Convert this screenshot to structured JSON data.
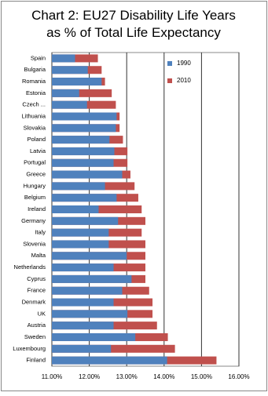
{
  "chart_data": {
    "type": "bar",
    "orientation": "horizontal",
    "overlap": true,
    "title": "Chart 2: EU27 Disability Life Years as % of Total Life Expectancy",
    "categories": [
      "Spain",
      "Bulgaria",
      "Romania",
      "Estonia",
      "Czech ...",
      "Lithuania",
      "Slovakia",
      "Poland",
      "Latvia",
      "Portugal",
      "Greece",
      "Hungary",
      "Belgium",
      "Ireland",
      "Germany",
      "Italy",
      "Slovenia",
      "Malta",
      "Netherlands",
      "Cyprus",
      "France",
      "Denmark",
      "UK",
      "Austria",
      "Sweden",
      "Luxembourg",
      "Finland"
    ],
    "series": [
      {
        "name": "1990",
        "color": "#4f81bd",
        "values": [
          11.62,
          11.96,
          12.33,
          11.73,
          11.94,
          12.73,
          12.71,
          12.54,
          12.67,
          12.65,
          12.88,
          12.42,
          12.73,
          12.25,
          12.77,
          12.52,
          12.52,
          13.0,
          12.65,
          13.13,
          12.88,
          12.65,
          13.02,
          12.65,
          13.23,
          12.58,
          14.08
        ]
      },
      {
        "name": "2010",
        "color": "#c0504d",
        "values": [
          12.23,
          12.33,
          12.42,
          12.6,
          12.71,
          12.81,
          12.81,
          12.9,
          13.02,
          13.02,
          13.1,
          13.21,
          13.31,
          13.4,
          13.5,
          13.4,
          13.5,
          13.5,
          13.5,
          13.5,
          13.6,
          13.69,
          13.69,
          13.81,
          14.1,
          14.29,
          15.4
        ]
      }
    ],
    "xlim": [
      11,
      16
    ],
    "xticks": [
      {
        "value": 11,
        "label": "11.00%"
      },
      {
        "value": 12,
        "label": "12.00%"
      },
      {
        "value": 13,
        "label": "13.00%"
      },
      {
        "value": 14,
        "label": "14.00%"
      },
      {
        "value": 15,
        "label": "15.00%"
      },
      {
        "value": 16,
        "label": "16.00%"
      }
    ],
    "grid": true,
    "legend": "top-right"
  }
}
